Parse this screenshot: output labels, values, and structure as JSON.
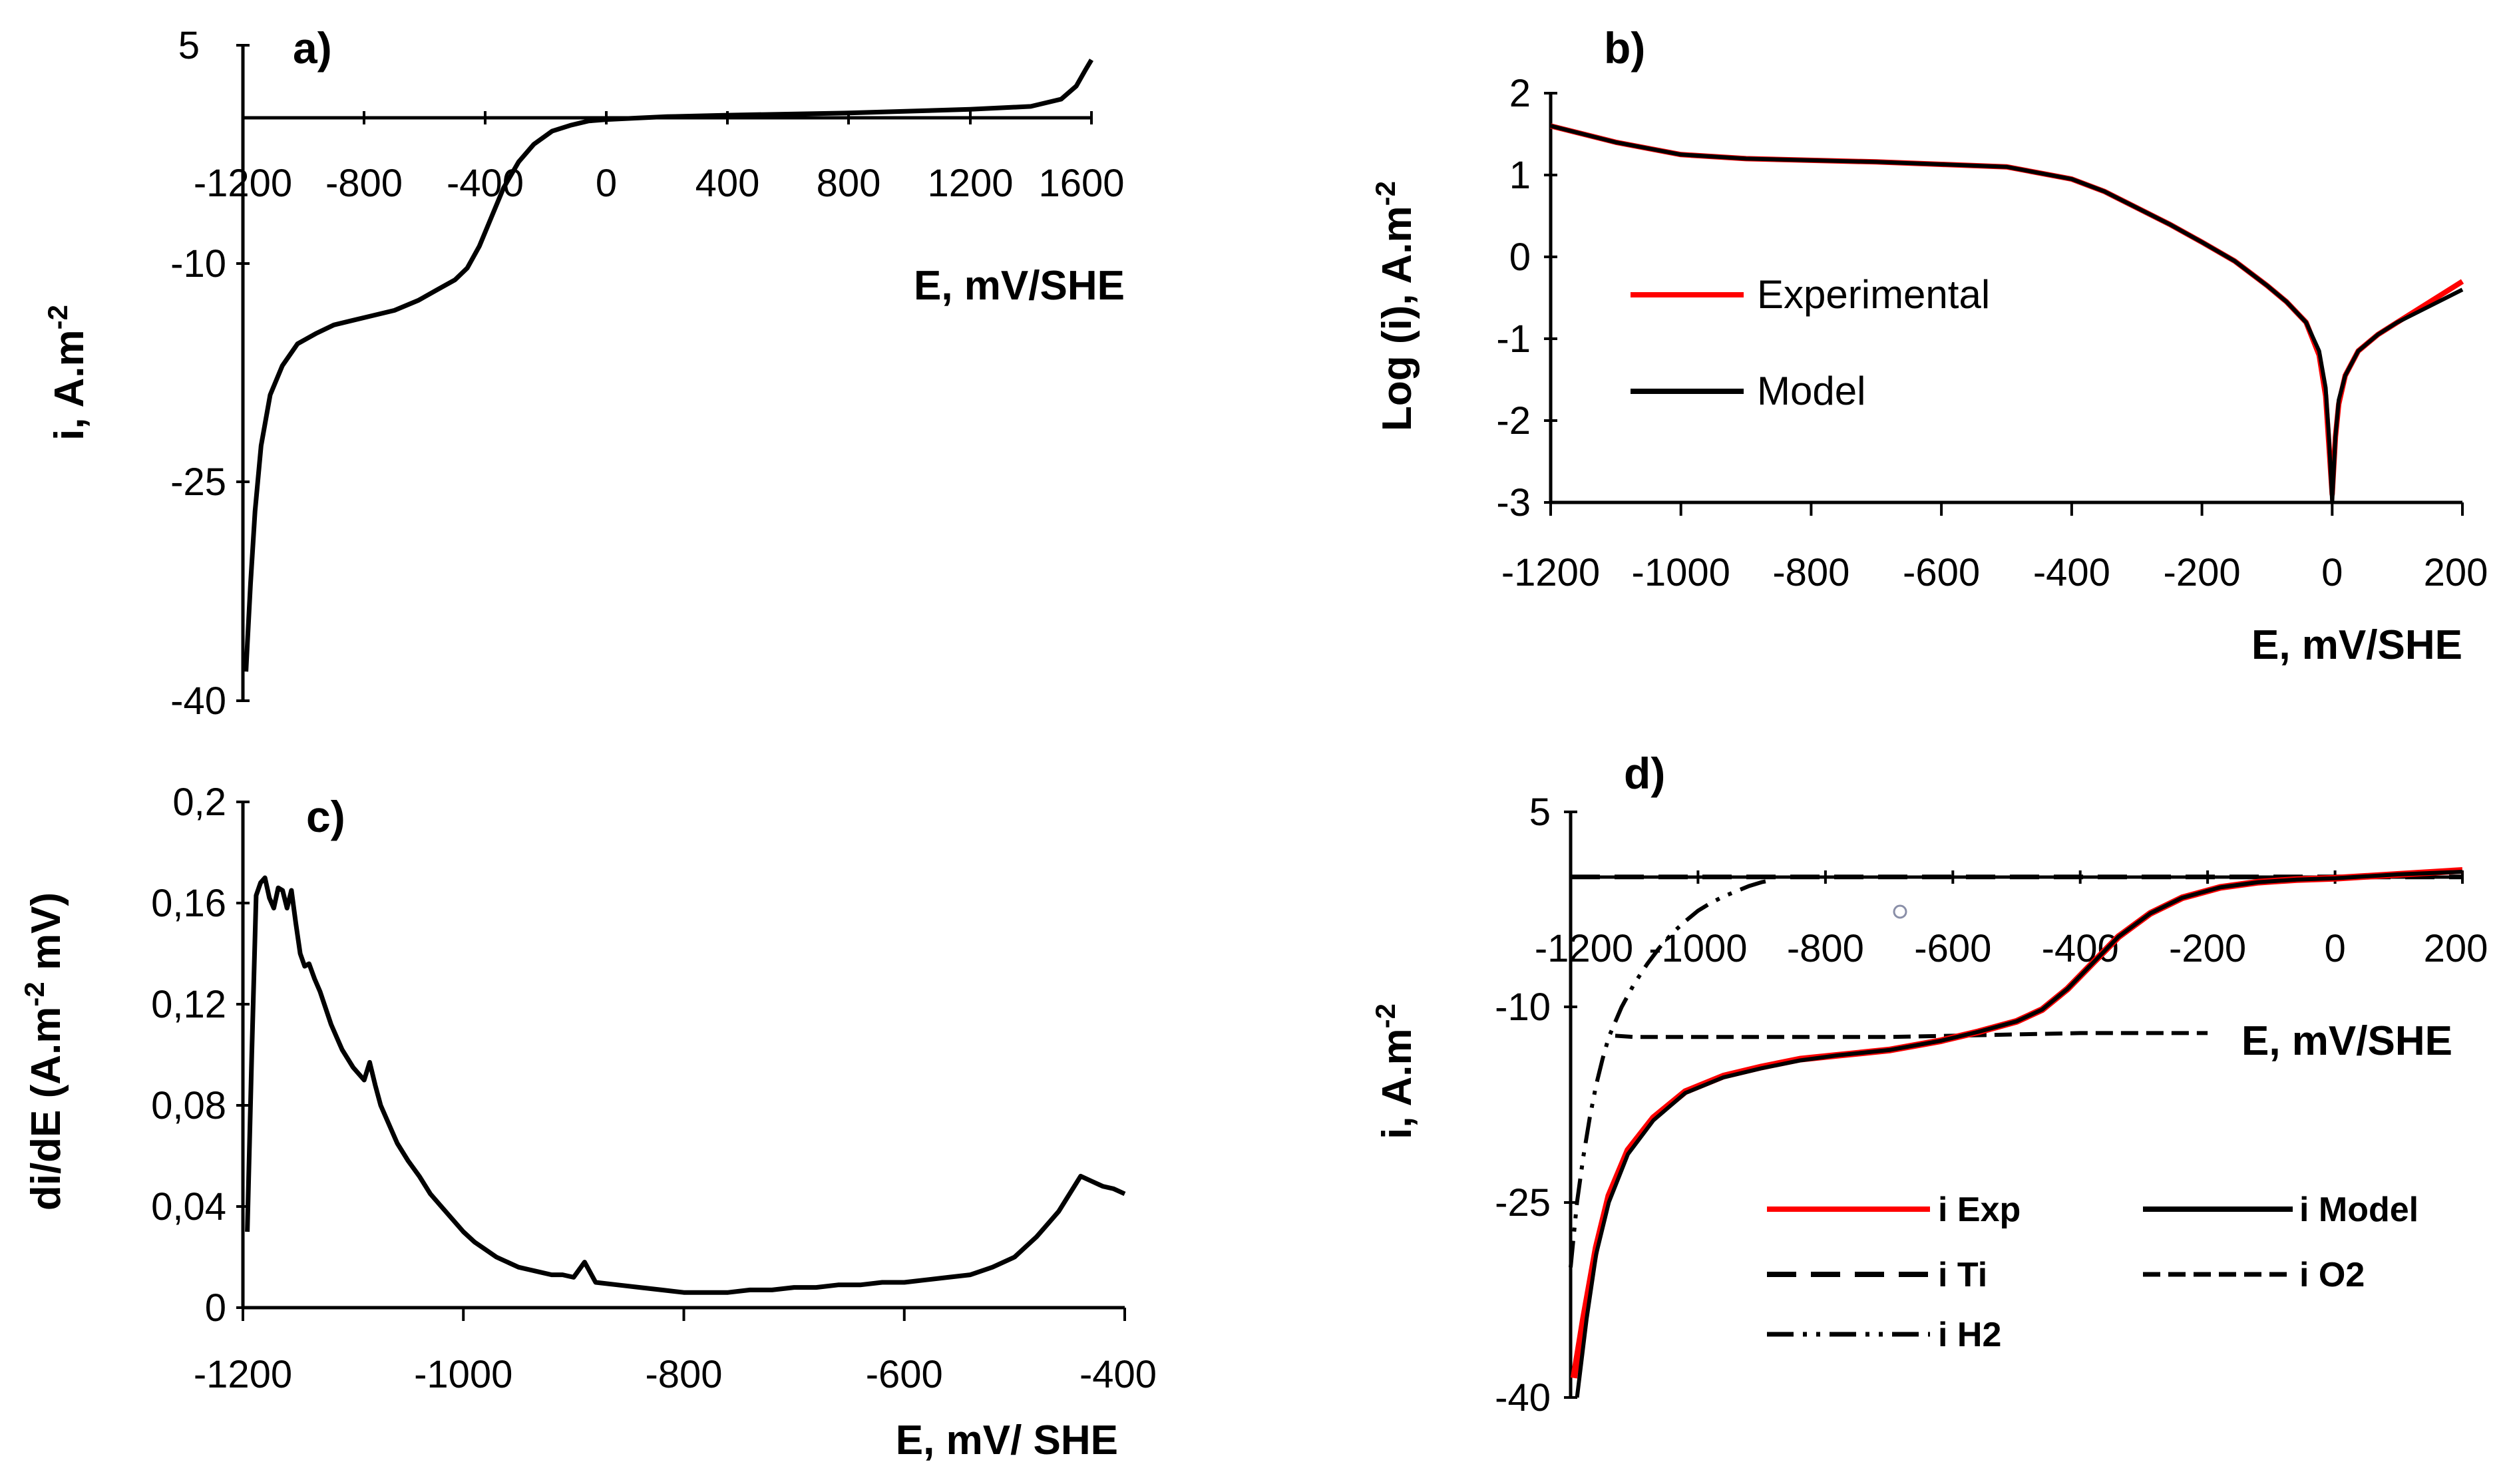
{
  "figure": {
    "panels": [
      {
        "label": "a)",
        "xlabel": "E, mV/SHE",
        "ylabel": "i, A.m",
        "ylabel_sup": "-2",
        "x_ticks": [
          "-1200",
          "-800",
          "-400",
          "0",
          "400",
          "800",
          "1200",
          "1600"
        ],
        "y_ticks": [
          "5",
          "-10",
          "-25",
          "-40"
        ]
      },
      {
        "label": "b)",
        "xlabel": "E, mV/SHE",
        "ylabel": "Log (i), A.m",
        "ylabel_sup": "-2",
        "x_ticks": [
          "-1200",
          "-1000",
          "-800",
          "-600",
          "-400",
          "-200",
          "0",
          "200"
        ],
        "y_ticks": [
          "2",
          "1",
          "0",
          "-1",
          "-2",
          "-3"
        ],
        "legend": [
          "Experimental",
          "Model"
        ]
      },
      {
        "label": "c)",
        "xlabel": "E, mV/ SHE",
        "ylabel_pre": "di/dE (A.m",
        "ylabel_sup": "-2",
        "ylabel_post": " mV)",
        "x_ticks": [
          "-1200",
          "-1000",
          "-800",
          "-600",
          "-400"
        ],
        "y_ticks": [
          "0,2",
          "0,16",
          "0,12",
          "0,08",
          "0,04",
          "0"
        ]
      },
      {
        "label": "d)",
        "xlabel": "E, mV/SHE",
        "ylabel": "i, A.m",
        "ylabel_sup": "-2",
        "x_ticks": [
          "-1200",
          "-1000",
          "-800",
          "-600",
          "-400",
          "-200",
          "0",
          "200"
        ],
        "y_ticks": [
          "5",
          "-10",
          "-25",
          "-40"
        ],
        "legend": [
          "i Exp",
          "i Model",
          "i Ti",
          "i O2",
          "i H2"
        ]
      }
    ]
  },
  "chart_data": [
    {
      "type": "line",
      "title": "a)",
      "xlabel": "E, mV/SHE",
      "ylabel": "i, A.m-2",
      "xlim": [
        -1200,
        1600
      ],
      "ylim": [
        -40,
        5
      ],
      "series": [
        {
          "name": "i",
          "color": "#000000",
          "x": [
            -1190,
            -1185,
            -1175,
            -1160,
            -1140,
            -1110,
            -1070,
            -1020,
            -960,
            -900,
            -840,
            -780,
            -700,
            -620,
            -560,
            -500,
            -460,
            -420,
            -380,
            -340,
            -290,
            -240,
            -180,
            -120,
            -60,
            0,
            100,
            200,
            400,
            800,
            1200,
            1400,
            1500,
            1550,
            1580,
            1600
          ],
          "y": [
            -38,
            -36,
            -32,
            -27,
            -22.5,
            -19,
            -17,
            -15.5,
            -14.8,
            -14.2,
            -13.9,
            -13.6,
            -13.2,
            -12.5,
            -11.8,
            -11.1,
            -10.3,
            -8.8,
            -6.8,
            -4.8,
            -3,
            -1.8,
            -0.9,
            -0.5,
            -0.2,
            -0.1,
            0,
            0.1,
            0.2,
            0.35,
            0.6,
            0.8,
            1.3,
            2.2,
            3.3,
            4
          ]
        }
      ]
    },
    {
      "type": "line",
      "title": "b)",
      "xlabel": "E, mV/SHE",
      "ylabel": "Log (i), A.m-2",
      "xlim": [
        -1200,
        200
      ],
      "ylim": [
        -3,
        2
      ],
      "legend": "center-left",
      "series": [
        {
          "name": "Experimental",
          "color": "#ff0000",
          "x": [
            -1200,
            -1100,
            -1000,
            -900,
            -800,
            -700,
            -600,
            -500,
            -400,
            -350,
            -300,
            -250,
            -200,
            -150,
            -100,
            -70,
            -40,
            -20,
            -10,
            -5,
            0,
            5,
            10,
            20,
            40,
            70,
            100,
            150,
            200
          ],
          "y": [
            1.6,
            1.4,
            1.25,
            1.2,
            1.18,
            1.16,
            1.13,
            1.1,
            0.95,
            0.8,
            0.6,
            0.4,
            0.18,
            -0.05,
            -0.35,
            -0.55,
            -0.8,
            -1.2,
            -1.7,
            -2.3,
            -2.9,
            -2.2,
            -1.8,
            -1.45,
            -1.15,
            -0.95,
            -0.8,
            -0.55,
            -0.3
          ]
        },
        {
          "name": "Model",
          "color": "#000000",
          "x": [
            -1200,
            -1100,
            -1000,
            -900,
            -800,
            -700,
            -600,
            -500,
            -400,
            -350,
            -300,
            -250,
            -200,
            -150,
            -100,
            -70,
            -40,
            -20,
            -10,
            -5,
            0,
            5,
            10,
            20,
            40,
            70,
            100,
            150,
            200
          ],
          "y": [
            1.6,
            1.4,
            1.25,
            1.2,
            1.18,
            1.16,
            1.13,
            1.1,
            0.95,
            0.8,
            0.6,
            0.4,
            0.18,
            -0.05,
            -0.35,
            -0.55,
            -0.8,
            -1.15,
            -1.6,
            -2.2,
            -3,
            -2.2,
            -1.75,
            -1.45,
            -1.15,
            -0.95,
            -0.8,
            -0.6,
            -0.4
          ]
        }
      ]
    },
    {
      "type": "line",
      "title": "c)",
      "xlabel": "E, mV/ SHE",
      "ylabel": "di/dE (A.m-2 mV)",
      "xlim": [
        -1200,
        -400
      ],
      "ylim": [
        0,
        0.2
      ],
      "series": [
        {
          "name": "di/dE",
          "color": "#000000",
          "x": [
            -1196,
            -1192,
            -1188,
            -1184,
            -1180,
            -1176,
            -1172,
            -1168,
            -1164,
            -1160,
            -1156,
            -1152,
            -1148,
            -1144,
            -1140,
            -1135,
            -1130,
            -1120,
            -1110,
            -1100,
            -1090,
            -1085,
            -1080,
            -1075,
            -1070,
            -1060,
            -1050,
            -1040,
            -1030,
            -1020,
            -1010,
            -1000,
            -990,
            -980,
            -970,
            -960,
            -950,
            -940,
            -930,
            -920,
            -910,
            -900,
            -890,
            -880,
            -860,
            -840,
            -820,
            -800,
            -780,
            -760,
            -740,
            -720,
            -700,
            -680,
            -660,
            -640,
            -620,
            -600,
            -580,
            -560,
            -540,
            -520,
            -500,
            -490,
            -480,
            -470,
            -460,
            -450,
            -440,
            -430,
            -420,
            -410,
            -400
          ],
          "y": [
            0.03,
            0.1,
            0.163,
            0.168,
            0.17,
            0.162,
            0.158,
            0.166,
            0.165,
            0.158,
            0.165,
            0.152,
            0.14,
            0.135,
            0.136,
            0.13,
            0.125,
            0.112,
            0.102,
            0.095,
            0.09,
            0.097,
            0.088,
            0.08,
            0.075,
            0.065,
            0.058,
            0.052,
            0.045,
            0.04,
            0.035,
            0.03,
            0.026,
            0.023,
            0.02,
            0.018,
            0.016,
            0.015,
            0.014,
            0.013,
            0.013,
            0.012,
            0.018,
            0.01,
            0.009,
            0.008,
            0.007,
            0.006,
            0.006,
            0.006,
            0.007,
            0.007,
            0.008,
            0.008,
            0.009,
            0.009,
            0.01,
            0.01,
            0.011,
            0.012,
            0.013,
            0.016,
            0.02,
            0.024,
            0.028,
            0.033,
            0.038,
            0.045,
            0.052,
            0.05,
            0.048,
            0.047,
            0.045
          ]
        }
      ]
    },
    {
      "type": "line",
      "title": "d)",
      "xlabel": "E, mV/SHE",
      "ylabel": "i, A.m-2",
      "xlim": [
        -1200,
        200
      ],
      "ylim": [
        -40,
        5
      ],
      "legend": "bottom-right",
      "series": [
        {
          "name": "i Exp",
          "color": "#ff0000",
          "dash": "solid",
          "x": [
            -1195,
            -1180,
            -1160,
            -1140,
            -1110,
            -1070,
            -1020,
            -960,
            -900,
            -840,
            -780,
            -700,
            -620,
            -560,
            -500,
            -460,
            -420,
            -380,
            -340,
            -290,
            -240,
            -180,
            -120,
            -60,
            0,
            100,
            200
          ],
          "y": [
            -38.5,
            -34,
            -28.5,
            -24.5,
            -21,
            -18.5,
            -16.5,
            -15.3,
            -14.6,
            -14,
            -13.7,
            -13.3,
            -12.6,
            -11.9,
            -11.1,
            -10.2,
            -8.6,
            -6.6,
            -4.6,
            -2.8,
            -1.6,
            -0.8,
            -0.4,
            -0.2,
            -0.1,
            0.2,
            0.5
          ]
        },
        {
          "name": "i Model",
          "color": "#000000",
          "dash": "solid",
          "x": [
            -1190,
            -1175,
            -1160,
            -1140,
            -1110,
            -1070,
            -1020,
            -960,
            -900,
            -840,
            -780,
            -700,
            -620,
            -560,
            -500,
            -460,
            -420,
            -380,
            -340,
            -290,
            -240,
            -180,
            -120,
            -60,
            0,
            100,
            200
          ],
          "y": [
            -40,
            -34,
            -29,
            -25,
            -21.3,
            -18.7,
            -16.6,
            -15.4,
            -14.7,
            -14.1,
            -13.7,
            -13.3,
            -12.6,
            -11.9,
            -11.1,
            -10.2,
            -8.6,
            -6.6,
            -4.6,
            -2.8,
            -1.6,
            -0.8,
            -0.4,
            -0.2,
            -0.1,
            0.2,
            0.4
          ]
        },
        {
          "name": "i Ti",
          "color": "#000000",
          "dash": "long-dash",
          "x": [
            -1200,
            200
          ],
          "y": [
            0,
            0
          ]
        },
        {
          "name": "i O2",
          "color": "#000000",
          "dash": "short-dash",
          "x": [
            -1130,
            -1100,
            -1000,
            -900,
            -800,
            -700,
            -600,
            -500,
            -400,
            -300,
            -200
          ],
          "y": [
            -12.2,
            -12.3,
            -12.3,
            -12.3,
            -12.3,
            -12.3,
            -12.2,
            -12.1,
            -12,
            -12,
            -12
          ]
        },
        {
          "name": "i H2",
          "color": "#000000",
          "dash": "dash-dot",
          "x": [
            -1200,
            -1190,
            -1180,
            -1170,
            -1160,
            -1150,
            -1140,
            -1120,
            -1100,
            -1080,
            -1060,
            -1040,
            -1020,
            -1000,
            -980,
            -960,
            -940,
            -920,
            -900,
            -880
          ],
          "y": [
            -30,
            -25,
            -21.5,
            -18.5,
            -16,
            -14,
            -12.3,
            -10,
            -8.2,
            -6.7,
            -5.4,
            -4.3,
            -3.4,
            -2.6,
            -2,
            -1.5,
            -1.1,
            -0.7,
            -0.4,
            -0.2
          ]
        }
      ]
    }
  ]
}
